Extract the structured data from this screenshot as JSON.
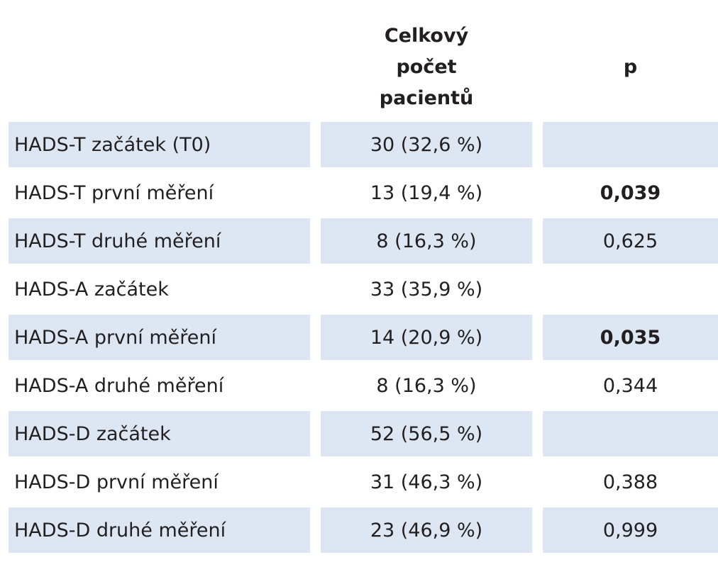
{
  "table": {
    "header": [
      "Celkový počet pacientů",
      "p"
    ],
    "rows": [
      {
        "label": "HADS-T začátek (T0)",
        "count": "30 (32,6 %)",
        "p": null
      },
      {
        "label": "HADS-T první měření",
        "count": "13 (19,4 %)",
        "p": "0,039",
        "emphasis": true
      },
      {
        "label": "HADS-T druhé měření",
        "count": "8 (16,3 %)",
        "p": "0,625"
      },
      {
        "label": "HADS-A začátek",
        "count": "33 (35,9 %)",
        "p": null
      },
      {
        "label": "HADS-A první měření",
        "count": "14 (20,9 %)",
        "p": "0,035",
        "emphasis": true
      },
      {
        "label": "HADS-A druhé měření",
        "count": "8 (16,3 %)",
        "p": "0,344"
      },
      {
        "label": "HADS-D začátek",
        "count": "52 (56,5 %)",
        "p": null
      },
      {
        "label": "HADS-D první měření",
        "count": "31 (46,3 %)",
        "p": "0,388"
      },
      {
        "label": "HADS-D druhé měření",
        "count": "23 (46,9 %)",
        "p": "0,999"
      }
    ]
  }
}
